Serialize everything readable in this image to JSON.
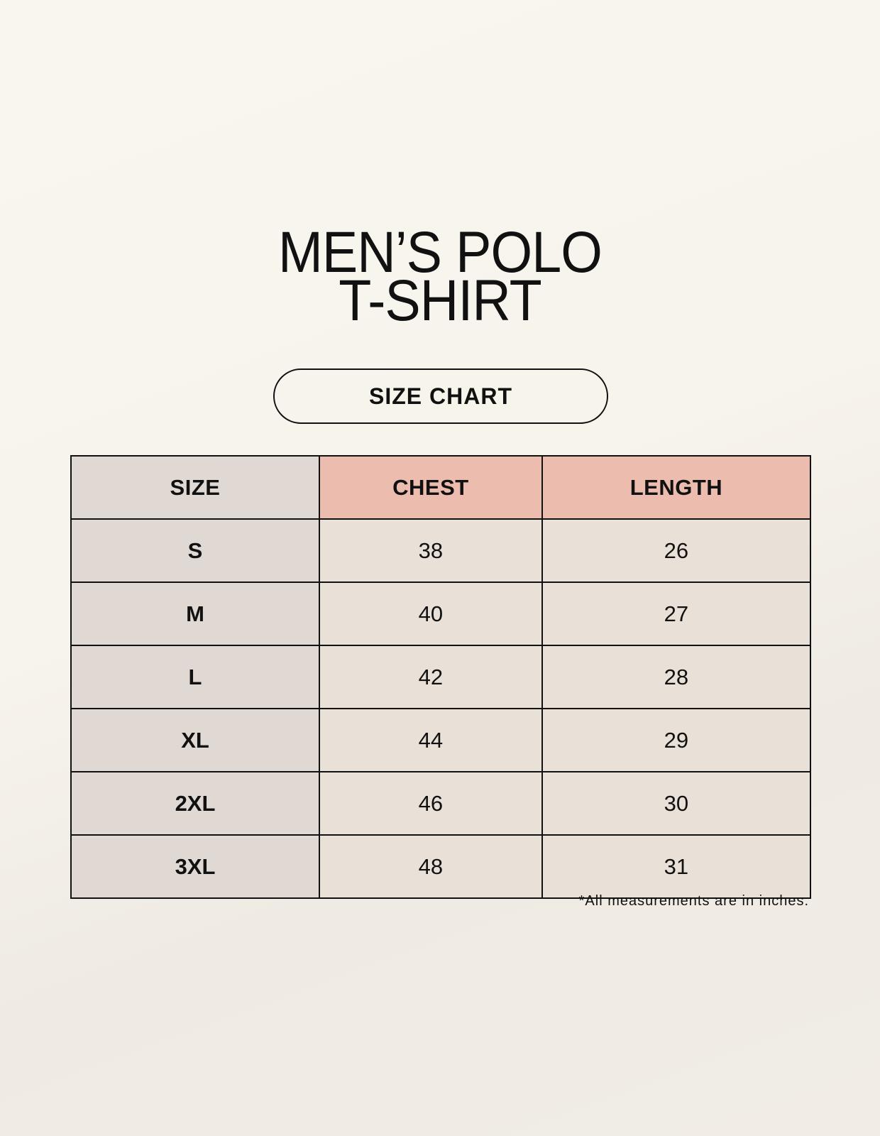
{
  "title_line1": "MEN’S POLO",
  "title_line2": "T-SHIRT",
  "badge": "SIZE CHART",
  "table": {
    "headers": [
      "SIZE",
      "CHEST",
      "LENGTH"
    ],
    "rows": [
      [
        "S",
        "38",
        "26"
      ],
      [
        "M",
        "40",
        "27"
      ],
      [
        "L",
        "42",
        "28"
      ],
      [
        "XL",
        "44",
        "29"
      ],
      [
        "2XL",
        "46",
        "30"
      ],
      [
        "3XL",
        "48",
        "31"
      ]
    ]
  },
  "footnote": "*All measurements are in inches.",
  "colors": {
    "size_column": "#e0d8d2",
    "header_accent": "#ecbcae",
    "cell": "#e9e1d7"
  }
}
